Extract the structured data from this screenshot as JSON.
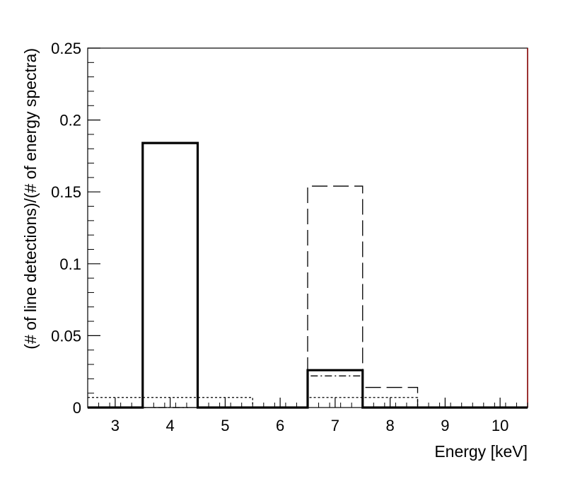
{
  "chart_data": {
    "type": "bar",
    "style": "histogram",
    "xlabel": "Energy [keV]",
    "ylabel": "(# of line detections)/(# of energy spectra)",
    "xlim": [
      2.5,
      10.5
    ],
    "ylim": [
      0,
      0.25
    ],
    "x_ticks": [
      3,
      4,
      5,
      6,
      7,
      8,
      9,
      10
    ],
    "x_tick_labels": [
      "3",
      "4",
      "5",
      "6",
      "7",
      "8",
      "9",
      "10"
    ],
    "y_ticks": [
      0,
      0.05,
      0.1,
      0.15,
      0.2,
      0.25
    ],
    "y_tick_labels": [
      "0",
      "0.05",
      "0.1",
      "0.15",
      "0.2",
      "0.25"
    ],
    "grid": false,
    "legend": "none",
    "bin_width": 1,
    "bin_centers": [
      3,
      4,
      5,
      6,
      7,
      8,
      9,
      10
    ],
    "series": [
      {
        "line_style": "solid-thick",
        "color": "#000000",
        "values": [
          0,
          0.184,
          0,
          0,
          0.026,
          0,
          0,
          0
        ]
      },
      {
        "line_style": "long-dash",
        "color": "#000000",
        "values": [
          0,
          0,
          0,
          0,
          0.154,
          0.014,
          0,
          0
        ]
      },
      {
        "line_style": "dash-dot",
        "color": "#000000",
        "values": [
          0,
          0,
          0,
          0,
          0.022,
          0,
          0,
          0
        ]
      },
      {
        "line_style": "dotted",
        "color": "#000000",
        "values": [
          0.007,
          0.007,
          0.007,
          0,
          0.007,
          0.007,
          0,
          0
        ]
      }
    ],
    "frame_color": "#000000",
    "right_edge_color": "#8b0000"
  }
}
